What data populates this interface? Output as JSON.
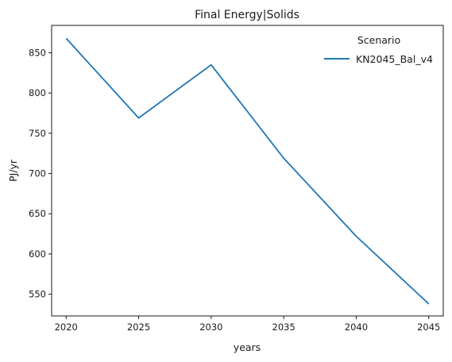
{
  "chart_data": {
    "type": "line",
    "title": "Final Energy|Solids",
    "xlabel": "years",
    "ylabel": "PJ/yr",
    "x": [
      2020,
      2025,
      2030,
      2035,
      2040,
      2045
    ],
    "series": [
      {
        "name": "KN2045_Bal_v4",
        "values": [
          868,
          769,
          835,
          719,
          622,
          538
        ],
        "color": "#1f77b4"
      }
    ],
    "xticks": [
      2020,
      2025,
      2030,
      2035,
      2040,
      2045
    ],
    "yticks": [
      550,
      600,
      650,
      700,
      750,
      800,
      850
    ],
    "xlim": [
      2019,
      2046
    ],
    "ylim": [
      523,
      884
    ],
    "grid": false,
    "legend": {
      "title": "Scenario",
      "placement": "top-right"
    }
  }
}
